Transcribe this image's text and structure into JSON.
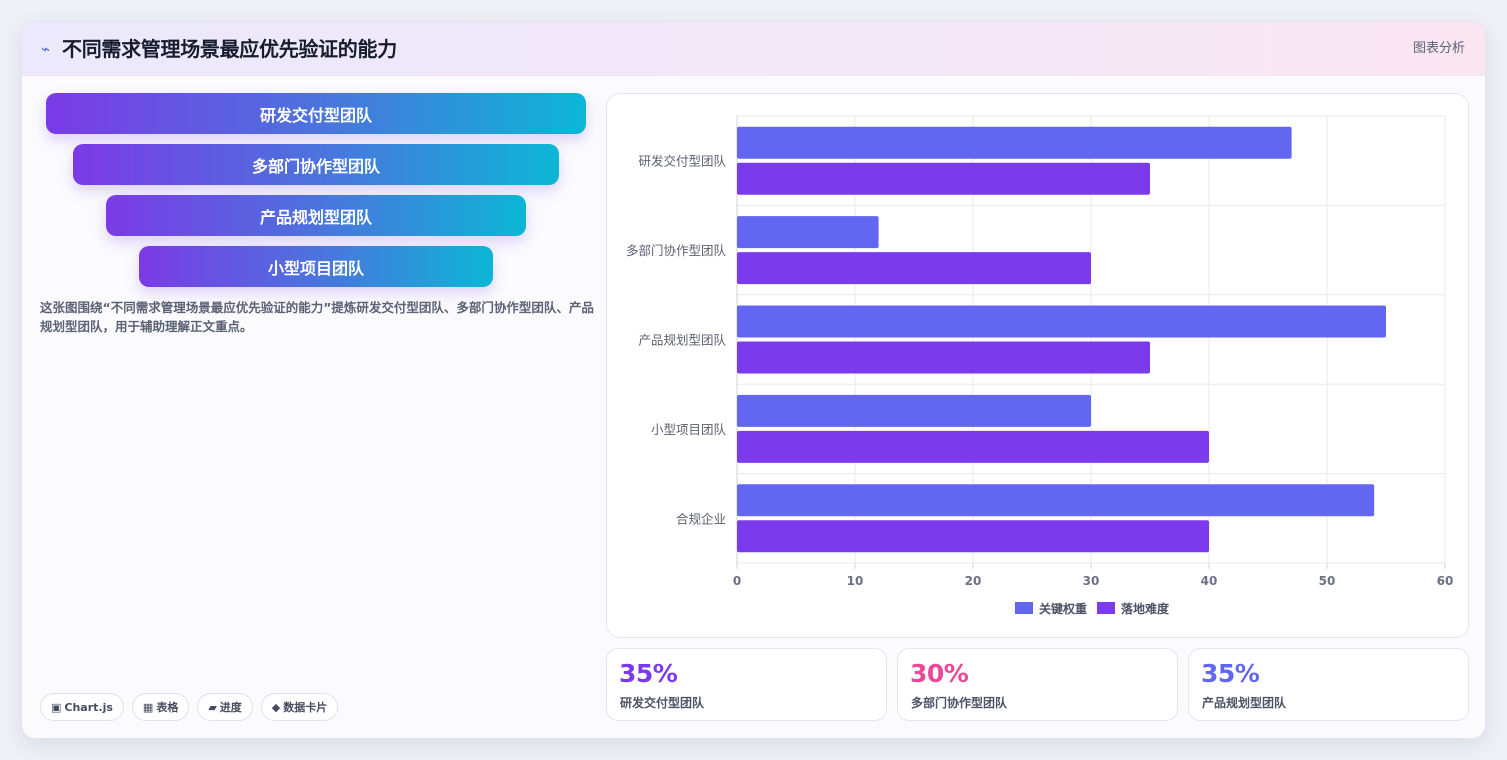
{
  "header": {
    "icon": "lightning-icon",
    "title": "不同需求管理场景最应优先验证的能力",
    "tag": "图表分析"
  },
  "funnel": {
    "items": [
      "研发交付型团队",
      "多部门协作型团队",
      "产品规划型团队",
      "小型项目团队"
    ]
  },
  "description": "这张图围绕“不同需求管理场景最应优先验证的能力”提炼研发交付型团队、多部门协作型团队、产品规划型团队，用于辅助理解正文重点。",
  "chips": [
    {
      "icon": "chart-square-icon",
      "glyph": "▣",
      "label": "Chart.js"
    },
    {
      "icon": "table-grid-icon",
      "glyph": "▦",
      "label": "表格"
    },
    {
      "icon": "progress-icon",
      "glyph": "▰",
      "label": "进度"
    },
    {
      "icon": "diamond-icon",
      "glyph": "◆",
      "label": "数据卡片"
    }
  ],
  "chart_data": {
    "type": "bar",
    "orientation": "horizontal",
    "categories": [
      "研发交付型团队",
      "多部门协作型团队",
      "产品规划型团队",
      "小型项目团队",
      "合规企业"
    ],
    "series": [
      {
        "name": "关键权重",
        "color": "#6366f1",
        "values": [
          47,
          12,
          55,
          30,
          54
        ]
      },
      {
        "name": "落地难度",
        "color": "#7c3aed",
        "values": [
          35,
          30,
          35,
          40,
          40
        ]
      }
    ],
    "xlim": [
      0,
      60
    ],
    "xticks": [
      0,
      10,
      20,
      30,
      40,
      50,
      60
    ],
    "grid": true,
    "legend": "bottom"
  },
  "stats": [
    {
      "value": "35%",
      "label": "研发交付型团队",
      "color": "#7c3aed"
    },
    {
      "value": "30%",
      "label": "多部门协作型团队",
      "color": "#ec4899"
    },
    {
      "value": "35%",
      "label": "产品规划型团队",
      "color": "#6366f1"
    }
  ]
}
